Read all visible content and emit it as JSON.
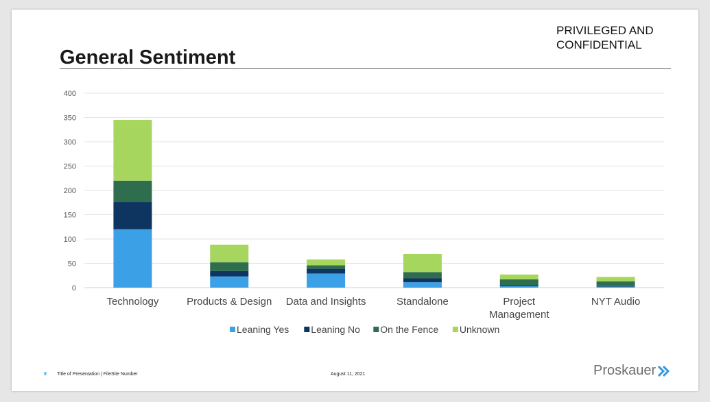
{
  "header": {
    "confidential_line1": "PRIVILEGED AND",
    "confidential_line2": "CONFIDENTIAL",
    "title": "General Sentiment"
  },
  "footer": {
    "page_number": "8",
    "presentation": "Title of Presentation | FileSite Number",
    "date": "August 11, 2021",
    "logo_text": "Proskauer"
  },
  "colors": {
    "Leaning Yes": "#3ba0e6",
    "Leaning No": "#0e3560",
    "On the Fence": "#2e6e4f",
    "Unknown": "#a6d65e",
    "logo_chevron": "#3399dd"
  },
  "chart_data": {
    "type": "bar",
    "stacked": true,
    "title": "",
    "xlabel": "",
    "ylabel": "",
    "ylim": [
      0,
      400
    ],
    "yticks": [
      0,
      50,
      100,
      150,
      200,
      250,
      300,
      350,
      400
    ],
    "grid": true,
    "legend_position": "bottom",
    "categories": [
      [
        "Technology"
      ],
      [
        "Products & Design"
      ],
      [
        "Data and Insights"
      ],
      [
        "Standalone"
      ],
      [
        "Project",
        "Management"
      ],
      [
        "NYT Audio"
      ]
    ],
    "series": [
      {
        "name": "Leaning Yes",
        "values": [
          120,
          23,
          29,
          11,
          3,
          2
        ]
      },
      {
        "name": "Leaning No",
        "values": [
          56,
          11,
          10,
          8,
          2,
          1
        ]
      },
      {
        "name": "On the Fence",
        "values": [
          44,
          18,
          7,
          13,
          12,
          10
        ]
      },
      {
        "name": "Unknown",
        "values": [
          125,
          36,
          12,
          37,
          10,
          9
        ]
      }
    ]
  }
}
